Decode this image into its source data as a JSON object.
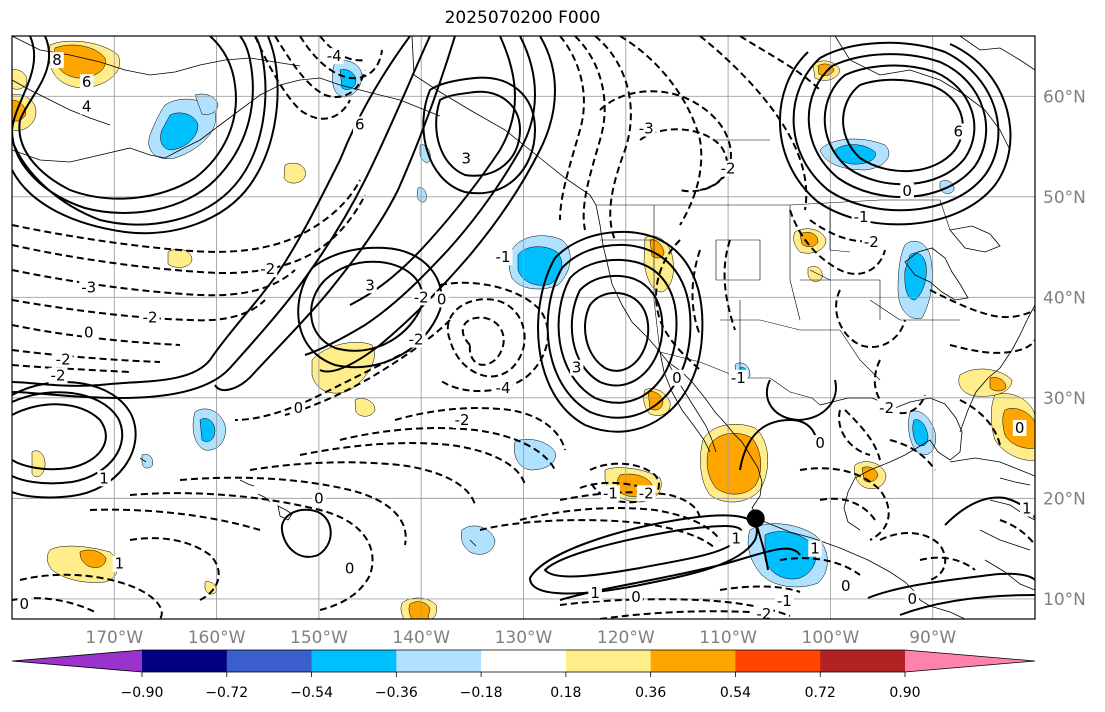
{
  "title": "2025070200 F000",
  "map": {
    "lon_range": [
      -180,
      -80
    ],
    "lat_range": [
      8,
      66
    ],
    "grid_lons": [
      -170,
      -160,
      -150,
      -140,
      -130,
      -120,
      -110,
      -100,
      -90
    ],
    "grid_lats": [
      10,
      20,
      30,
      40,
      50,
      60
    ],
    "lon_labels": [
      "170°W",
      "160°W",
      "150°W",
      "140°W",
      "130°W",
      "120°W",
      "110°W",
      "100°W",
      "90°W"
    ],
    "lat_labels": [
      "10°N",
      "20°N",
      "30°N",
      "40°N",
      "50°N",
      "60°N"
    ],
    "grid": true,
    "marker": {
      "lon": -107.3,
      "lat": 18.0
    }
  },
  "colorbar": {
    "boundaries": [
      "−0.90",
      "−0.72",
      "−0.54",
      "−0.36",
      "−0.18",
      "0.18",
      "0.36",
      "0.54",
      "0.72",
      "0.90"
    ],
    "colors": [
      "#9a32cd",
      "#000080",
      "#3a5fcd",
      "#00bfff",
      "#b0e2ff",
      "#ffffff",
      "#ffec8b",
      "#ffa500",
      "#ff4500",
      "#b22222",
      "#ff82ab"
    ],
    "extend": "both"
  },
  "shading_colors": {
    "light_blue": "#b0e2ff",
    "blue": "#00bfff",
    "yellow": "#ffec8b",
    "orange": "#ffa500"
  },
  "contour_labels": [
    {
      "text": "8",
      "lon": -175.6,
      "lat": 63.6
    },
    {
      "text": "6",
      "lon": -172.7,
      "lat": 61.4
    },
    {
      "text": "4",
      "lon": -172.7,
      "lat": 59.0
    },
    {
      "text": "-4",
      "lon": -148.5,
      "lat": 64.0
    },
    {
      "text": "6",
      "lon": -146.0,
      "lat": 57.2
    },
    {
      "text": "3",
      "lon": -135.6,
      "lat": 53.8
    },
    {
      "text": "-3",
      "lon": -118.0,
      "lat": 56.8
    },
    {
      "text": "-2",
      "lon": -110.0,
      "lat": 52.8
    },
    {
      "text": "6",
      "lon": -87.5,
      "lat": 56.5
    },
    {
      "text": "0",
      "lon": -92.5,
      "lat": 50.6
    },
    {
      "text": "-1",
      "lon": -97.0,
      "lat": 48.0
    },
    {
      "text": "-2",
      "lon": -96.0,
      "lat": 45.5
    },
    {
      "text": "-2",
      "lon": -155.0,
      "lat": 42.8
    },
    {
      "text": "-3",
      "lon": -172.5,
      "lat": 41.0
    },
    {
      "text": "-2",
      "lon": -166.5,
      "lat": 38.0
    },
    {
      "text": "3",
      "lon": -145.0,
      "lat": 41.2
    },
    {
      "text": "-2",
      "lon": -140.0,
      "lat": 40.0
    },
    {
      "text": "0",
      "lon": -138.0,
      "lat": 39.8
    },
    {
      "text": "-1",
      "lon": -132.0,
      "lat": 44.0
    },
    {
      "text": "0",
      "lon": -172.5,
      "lat": 36.5
    },
    {
      "text": "-2",
      "lon": -175.0,
      "lat": 33.8
    },
    {
      "text": "-2",
      "lon": -175.5,
      "lat": 32.2
    },
    {
      "text": "-2",
      "lon": -140.5,
      "lat": 35.8
    },
    {
      "text": "-4",
      "lon": -132.0,
      "lat": 31.0
    },
    {
      "text": "-2",
      "lon": -136.0,
      "lat": 27.8
    },
    {
      "text": "0",
      "lon": -152.0,
      "lat": 29.0
    },
    {
      "text": "3",
      "lon": -124.8,
      "lat": 33.0
    },
    {
      "text": "1",
      "lon": -171.0,
      "lat": 22.0
    },
    {
      "text": "0",
      "lon": -150.0,
      "lat": 20.0
    },
    {
      "text": "0",
      "lon": -147.0,
      "lat": 13.0
    },
    {
      "text": "1",
      "lon": -169.5,
      "lat": 13.5
    },
    {
      "text": "-1",
      "lon": -121.5,
      "lat": 20.5
    },
    {
      "text": "-2",
      "lon": -118.0,
      "lat": 20.5
    },
    {
      "text": "0",
      "lon": -115.0,
      "lat": 32.0
    },
    {
      "text": "-1",
      "lon": -109.0,
      "lat": 32.0
    },
    {
      "text": "1",
      "lon": -109.2,
      "lat": 16.0
    },
    {
      "text": "1",
      "lon": -101.5,
      "lat": 15.0
    },
    {
      "text": "1",
      "lon": -123.0,
      "lat": 10.6
    },
    {
      "text": "0",
      "lon": -119.0,
      "lat": 10.2
    },
    {
      "text": "-2",
      "lon": -106.5,
      "lat": 8.5
    },
    {
      "text": "-1",
      "lon": -104.5,
      "lat": 9.8
    },
    {
      "text": "0",
      "lon": -98.5,
      "lat": 11.3
    },
    {
      "text": "0",
      "lon": -101.0,
      "lat": 25.5
    },
    {
      "text": "0",
      "lon": -92.0,
      "lat": 10.0
    },
    {
      "text": "-2",
      "lon": -94.5,
      "lat": 29.0
    },
    {
      "text": "0",
      "lon": -81.5,
      "lat": 27.0
    },
    {
      "text": "1",
      "lon": -80.8,
      "lat": 19.0
    },
    {
      "text": "0",
      "lon": -178.8,
      "lat": 9.5
    }
  ]
}
